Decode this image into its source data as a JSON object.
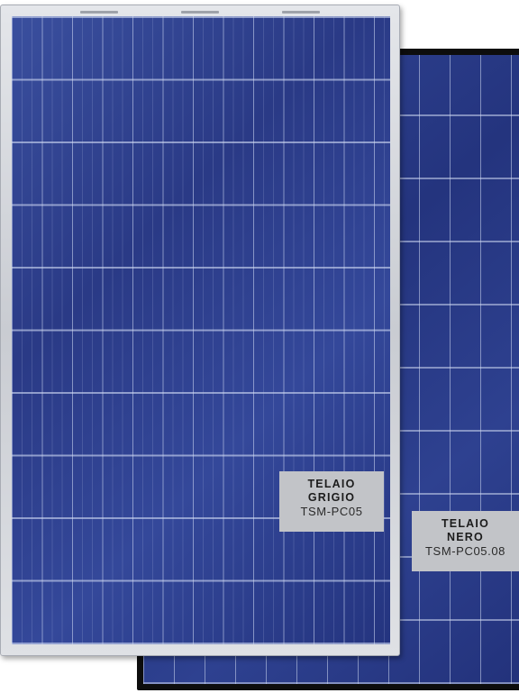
{
  "labels": {
    "grey_frame": {
      "line1": "TELAIO",
      "line2": "GRIGIO",
      "model": "TSM-PC05"
    },
    "black_frame": {
      "line1": "TELAIO",
      "line2": "NERO",
      "model": "TSM-PC05.08"
    }
  },
  "colors": {
    "cell_blue": "#2b3c8a",
    "grey_frame": "#c9ccd2",
    "black_frame": "#0d0d0d",
    "label_background": "#c2c4c8",
    "accent_red": "#e01a22"
  }
}
